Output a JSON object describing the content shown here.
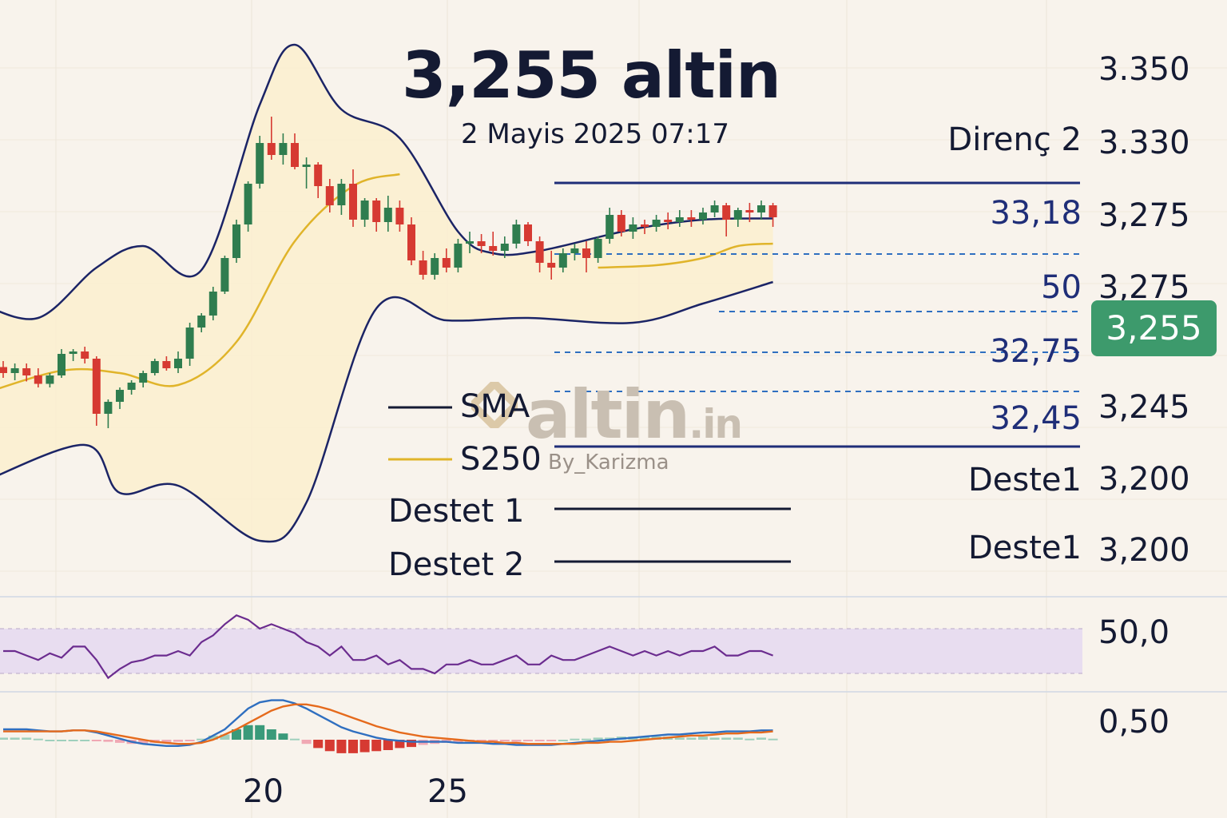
{
  "header": {
    "title": "3,255 altin",
    "subtitle": "2 Mayis 2025 07:17"
  },
  "price_badge": {
    "value": "3,255",
    "color": "#3d9a6c"
  },
  "right_axis_labels": [
    "3.350",
    "3.330",
    "3,275",
    "3,275",
    "3,245",
    "3,200",
    "3,200"
  ],
  "rsi_label": "50,0",
  "macd_label": "0,50",
  "levels": {
    "direnc2": "Direnç 2",
    "l3318": "33,18",
    "l50": "50",
    "l3275": "32,75",
    "l3245": "32,45",
    "deste1_a": "Deste1",
    "deste1_b": "Deste1"
  },
  "legend": {
    "sma": "SMA",
    "s250": "S250",
    "destet1": "Destet 1",
    "destet2": "Destet 2"
  },
  "watermark": {
    "brand": "altin",
    "tld": ".in",
    "byline": "By_Karizma"
  },
  "x_tick_labels": [
    "20",
    "25"
  ],
  "colors": {
    "background": "#f8f3ec",
    "up": "#2f7d4f",
    "down": "#d63a32",
    "band": "#1b2466",
    "band_fill": "#fbefcf",
    "sma_line": "#e0b42a",
    "level_line": "#1f2e78",
    "rsi": "#6b2c8f",
    "rsi_zone": "#e8ddf0",
    "macd_line": "#2f6fc0",
    "signal_line": "#e56a1c"
  },
  "chart_data": [
    {
      "type": "candlestick",
      "title": "3,255 altin",
      "x_ticks": [
        {
          "index": 21,
          "label": "20"
        },
        {
          "index": 36,
          "label": "25"
        }
      ],
      "candles": [
        {
          "o": 27,
          "h": 32,
          "l": 18,
          "c": 22
        },
        {
          "o": 22,
          "h": 30,
          "l": 16,
          "c": 26
        },
        {
          "o": 26,
          "h": 30,
          "l": 15,
          "c": 20
        },
        {
          "o": 20,
          "h": 26,
          "l": 10,
          "c": 13
        },
        {
          "o": 13,
          "h": 22,
          "l": 10,
          "c": 20
        },
        {
          "o": 20,
          "h": 42,
          "l": 18,
          "c": 38
        },
        {
          "o": 38,
          "h": 42,
          "l": 32,
          "c": 40
        },
        {
          "o": 40,
          "h": 44,
          "l": 30,
          "c": 34
        },
        {
          "o": 34,
          "h": 36,
          "l": -22,
          "c": -12
        },
        {
          "o": -12,
          "h": 0,
          "l": -24,
          "c": -2
        },
        {
          "o": -2,
          "h": 10,
          "l": -8,
          "c": 8
        },
        {
          "o": 8,
          "h": 16,
          "l": 4,
          "c": 14
        },
        {
          "o": 14,
          "h": 24,
          "l": 10,
          "c": 22
        },
        {
          "o": 22,
          "h": 34,
          "l": 20,
          "c": 32
        },
        {
          "o": 32,
          "h": 36,
          "l": 24,
          "c": 26
        },
        {
          "o": 26,
          "h": 40,
          "l": 22,
          "c": 34
        },
        {
          "o": 34,
          "h": 64,
          "l": 28,
          "c": 60
        },
        {
          "o": 60,
          "h": 72,
          "l": 56,
          "c": 70
        },
        {
          "o": 70,
          "h": 94,
          "l": 66,
          "c": 90
        },
        {
          "o": 90,
          "h": 120,
          "l": 88,
          "c": 118
        },
        {
          "o": 118,
          "h": 150,
          "l": 114,
          "c": 146
        },
        {
          "o": 146,
          "h": 182,
          "l": 140,
          "c": 180
        },
        {
          "o": 180,
          "h": 220,
          "l": 176,
          "c": 214
        },
        {
          "o": 214,
          "h": 236,
          "l": 200,
          "c": 204
        },
        {
          "o": 204,
          "h": 222,
          "l": 196,
          "c": 214
        },
        {
          "o": 214,
          "h": 222,
          "l": 192,
          "c": 194
        },
        {
          "o": 194,
          "h": 202,
          "l": 176,
          "c": 196
        },
        {
          "o": 196,
          "h": 198,
          "l": 168,
          "c": 178
        },
        {
          "o": 178,
          "h": 184,
          "l": 156,
          "c": 162
        },
        {
          "o": 162,
          "h": 184,
          "l": 154,
          "c": 180
        },
        {
          "o": 180,
          "h": 192,
          "l": 144,
          "c": 150
        },
        {
          "o": 150,
          "h": 168,
          "l": 144,
          "c": 166
        },
        {
          "o": 166,
          "h": 168,
          "l": 140,
          "c": 148
        },
        {
          "o": 148,
          "h": 170,
          "l": 140,
          "c": 160
        },
        {
          "o": 160,
          "h": 166,
          "l": 140,
          "c": 146
        },
        {
          "o": 146,
          "h": 152,
          "l": 112,
          "c": 116
        },
        {
          "o": 116,
          "h": 124,
          "l": 100,
          "c": 104
        },
        {
          "o": 104,
          "h": 122,
          "l": 100,
          "c": 118
        },
        {
          "o": 118,
          "h": 126,
          "l": 106,
          "c": 110
        },
        {
          "o": 110,
          "h": 134,
          "l": 106,
          "c": 130
        },
        {
          "o": 130,
          "h": 140,
          "l": 122,
          "c": 132
        },
        {
          "o": 132,
          "h": 138,
          "l": 122,
          "c": 128
        },
        {
          "o": 128,
          "h": 140,
          "l": 120,
          "c": 124
        },
        {
          "o": 124,
          "h": 136,
          "l": 118,
          "c": 130
        },
        {
          "o": 130,
          "h": 150,
          "l": 126,
          "c": 146
        },
        {
          "o": 146,
          "h": 148,
          "l": 128,
          "c": 132
        },
        {
          "o": 132,
          "h": 136,
          "l": 106,
          "c": 114
        },
        {
          "o": 114,
          "h": 124,
          "l": 100,
          "c": 110
        },
        {
          "o": 110,
          "h": 126,
          "l": 106,
          "c": 122
        },
        {
          "o": 122,
          "h": 130,
          "l": 116,
          "c": 126
        },
        {
          "o": 126,
          "h": 132,
          "l": 106,
          "c": 118
        },
        {
          "o": 118,
          "h": 136,
          "l": 114,
          "c": 134
        },
        {
          "o": 134,
          "h": 160,
          "l": 130,
          "c": 154
        },
        {
          "o": 154,
          "h": 158,
          "l": 136,
          "c": 140
        },
        {
          "o": 140,
          "h": 152,
          "l": 134,
          "c": 146
        },
        {
          "o": 146,
          "h": 150,
          "l": 138,
          "c": 144
        },
        {
          "o": 144,
          "h": 154,
          "l": 140,
          "c": 150
        },
        {
          "o": 150,
          "h": 156,
          "l": 142,
          "c": 148
        },
        {
          "o": 148,
          "h": 158,
          "l": 144,
          "c": 152
        },
        {
          "o": 152,
          "h": 158,
          "l": 144,
          "c": 150
        },
        {
          "o": 150,
          "h": 160,
          "l": 146,
          "c": 156
        },
        {
          "o": 156,
          "h": 166,
          "l": 152,
          "c": 162
        },
        {
          "o": 162,
          "h": 164,
          "l": 136,
          "c": 150
        },
        {
          "o": 150,
          "h": 160,
          "l": 144,
          "c": 158
        },
        {
          "o": 158,
          "h": 164,
          "l": 148,
          "c": 156
        },
        {
          "o": 156,
          "h": 166,
          "l": 150,
          "c": 162
        },
        {
          "o": 162,
          "h": 164,
          "l": 144,
          "c": 152
        }
      ],
      "bollinger": {
        "upper": [
          {
            "i": -2,
            "v": 80
          },
          {
            "i": 3,
            "v": 68
          },
          {
            "i": 8,
            "v": 110
          },
          {
            "i": 12,
            "v": 128
          },
          {
            "i": 17,
            "v": 108
          },
          {
            "i": 22,
            "v": 246
          },
          {
            "i": 25,
            "v": 296
          },
          {
            "i": 29,
            "v": 242
          },
          {
            "i": 34,
            "v": 218
          },
          {
            "i": 39,
            "v": 140
          },
          {
            "i": 42,
            "v": 122
          },
          {
            "i": 46,
            "v": 124
          },
          {
            "i": 54,
            "v": 142
          },
          {
            "i": 60,
            "v": 150
          },
          {
            "i": 66,
            "v": 151
          }
        ],
        "lower": [
          {
            "i": -2,
            "v": -70
          },
          {
            "i": 7,
            "v": -38
          },
          {
            "i": 10,
            "v": -78
          },
          {
            "i": 15,
            "v": -72
          },
          {
            "i": 22,
            "v": -118
          },
          {
            "i": 26,
            "v": -86
          },
          {
            "i": 32,
            "v": 76
          },
          {
            "i": 38,
            "v": 66
          },
          {
            "i": 45,
            "v": 68
          },
          {
            "i": 54,
            "v": 64
          },
          {
            "i": 60,
            "v": 80
          },
          {
            "i": 66,
            "v": 98
          }
        ],
        "middle": [
          {
            "i": -2,
            "v": 4
          },
          {
            "i": 5,
            "v": 24
          },
          {
            "i": 10,
            "v": 22
          },
          {
            "i": 15,
            "v": 12
          },
          {
            "i": 20,
            "v": 48
          },
          {
            "i": 25,
            "v": 132
          },
          {
            "i": 30,
            "v": 178
          },
          {
            "i": 34,
            "v": 188
          }
        ],
        "sma_right": [
          {
            "i": 51,
            "v": 110
          },
          {
            "i": 56,
            "v": 112
          },
          {
            "i": 60,
            "v": 118
          },
          {
            "i": 63,
            "v": 128
          },
          {
            "i": 66,
            "v": 130
          }
        ]
      },
      "levels": [
        {
          "label": "Direnç 2",
          "value": 3.33
        },
        {
          "label": "33,18",
          "value": 33.18
        },
        {
          "label": "50",
          "value": 50
        },
        {
          "label": "32,75",
          "value": 32.75
        },
        {
          "label": "32,45",
          "value": 32.45
        },
        {
          "label": "Deste1",
          "value": 3.2
        }
      ],
      "legend": [
        "SMA",
        "S250",
        "Destet 1",
        "Destet 2"
      ]
    },
    {
      "type": "line",
      "name_hint": "oscillator",
      "axis_label": "50,0",
      "values": [
        48,
        48,
        46,
        44,
        47,
        45,
        50,
        50,
        44,
        36,
        40,
        43,
        44,
        46,
        46,
        48,
        46,
        52,
        55,
        60,
        64,
        62,
        58,
        60,
        58,
        56,
        52,
        50,
        46,
        50,
        44,
        44,
        46,
        42,
        44,
        40,
        40,
        38,
        42,
        42,
        44,
        42,
        42,
        44,
        46,
        42,
        42,
        46,
        44,
        44,
        46,
        48,
        50,
        48,
        46,
        48,
        46,
        48,
        46,
        48,
        48,
        50,
        46,
        46,
        48,
        48,
        46
      ]
    },
    {
      "type": "line",
      "name_hint": "macd",
      "axis_label": "0,50",
      "macd": [
        0.1,
        0.1,
        0.1,
        0.09,
        0.08,
        0.08,
        0.09,
        0.09,
        0.07,
        0.04,
        0.01,
        -0.02,
        -0.04,
        -0.05,
        -0.06,
        -0.06,
        -0.05,
        -0.02,
        0.04,
        0.1,
        0.2,
        0.3,
        0.36,
        0.38,
        0.38,
        0.35,
        0.3,
        0.24,
        0.18,
        0.12,
        0.08,
        0.05,
        0.02,
        0.0,
        -0.01,
        -0.02,
        -0.02,
        -0.02,
        -0.02,
        -0.03,
        -0.03,
        -0.03,
        -0.04,
        -0.04,
        -0.05,
        -0.05,
        -0.05,
        -0.05,
        -0.04,
        -0.03,
        -0.02,
        -0.01,
        0.0,
        0.01,
        0.02,
        0.03,
        0.04,
        0.05,
        0.05,
        0.06,
        0.07,
        0.07,
        0.08,
        0.08,
        0.08,
        0.09,
        0.09
      ],
      "signal": [
        0.08,
        0.08,
        0.08,
        0.08,
        0.08,
        0.08,
        0.09,
        0.09,
        0.08,
        0.06,
        0.04,
        0.02,
        0.0,
        -0.02,
        -0.03,
        -0.04,
        -0.04,
        -0.03,
        0.0,
        0.05,
        0.1,
        0.16,
        0.22,
        0.28,
        0.32,
        0.34,
        0.34,
        0.32,
        0.29,
        0.25,
        0.21,
        0.17,
        0.13,
        0.1,
        0.07,
        0.05,
        0.03,
        0.02,
        0.01,
        0.0,
        -0.01,
        -0.02,
        -0.02,
        -0.03,
        -0.03,
        -0.04,
        -0.04,
        -0.04,
        -0.04,
        -0.04,
        -0.03,
        -0.03,
        -0.02,
        -0.02,
        -0.01,
        0.0,
        0.01,
        0.02,
        0.03,
        0.04,
        0.04,
        0.05,
        0.06,
        0.06,
        0.07,
        0.07,
        0.08
      ],
      "histogram": [
        0.02,
        0.02,
        0.02,
        0.01,
        0.0,
        0.0,
        0.0,
        0.0,
        -0.01,
        -0.02,
        -0.03,
        -0.04,
        -0.04,
        -0.03,
        -0.03,
        -0.02,
        -0.01,
        0.01,
        0.04,
        0.05,
        0.1,
        0.14,
        0.14,
        0.1,
        0.06,
        0.01,
        -0.04,
        -0.08,
        -0.11,
        -0.13,
        -0.13,
        -0.12,
        -0.11,
        -0.1,
        -0.08,
        -0.07,
        -0.05,
        -0.04,
        -0.03,
        -0.03,
        -0.02,
        -0.01,
        -0.02,
        -0.01,
        -0.02,
        -0.01,
        -0.01,
        -0.01,
        0.0,
        0.01,
        0.01,
        0.02,
        0.02,
        0.03,
        0.03,
        0.03,
        0.03,
        0.03,
        0.02,
        0.02,
        0.03,
        0.02,
        0.02,
        0.02,
        0.01,
        0.02,
        0.01
      ]
    }
  ]
}
